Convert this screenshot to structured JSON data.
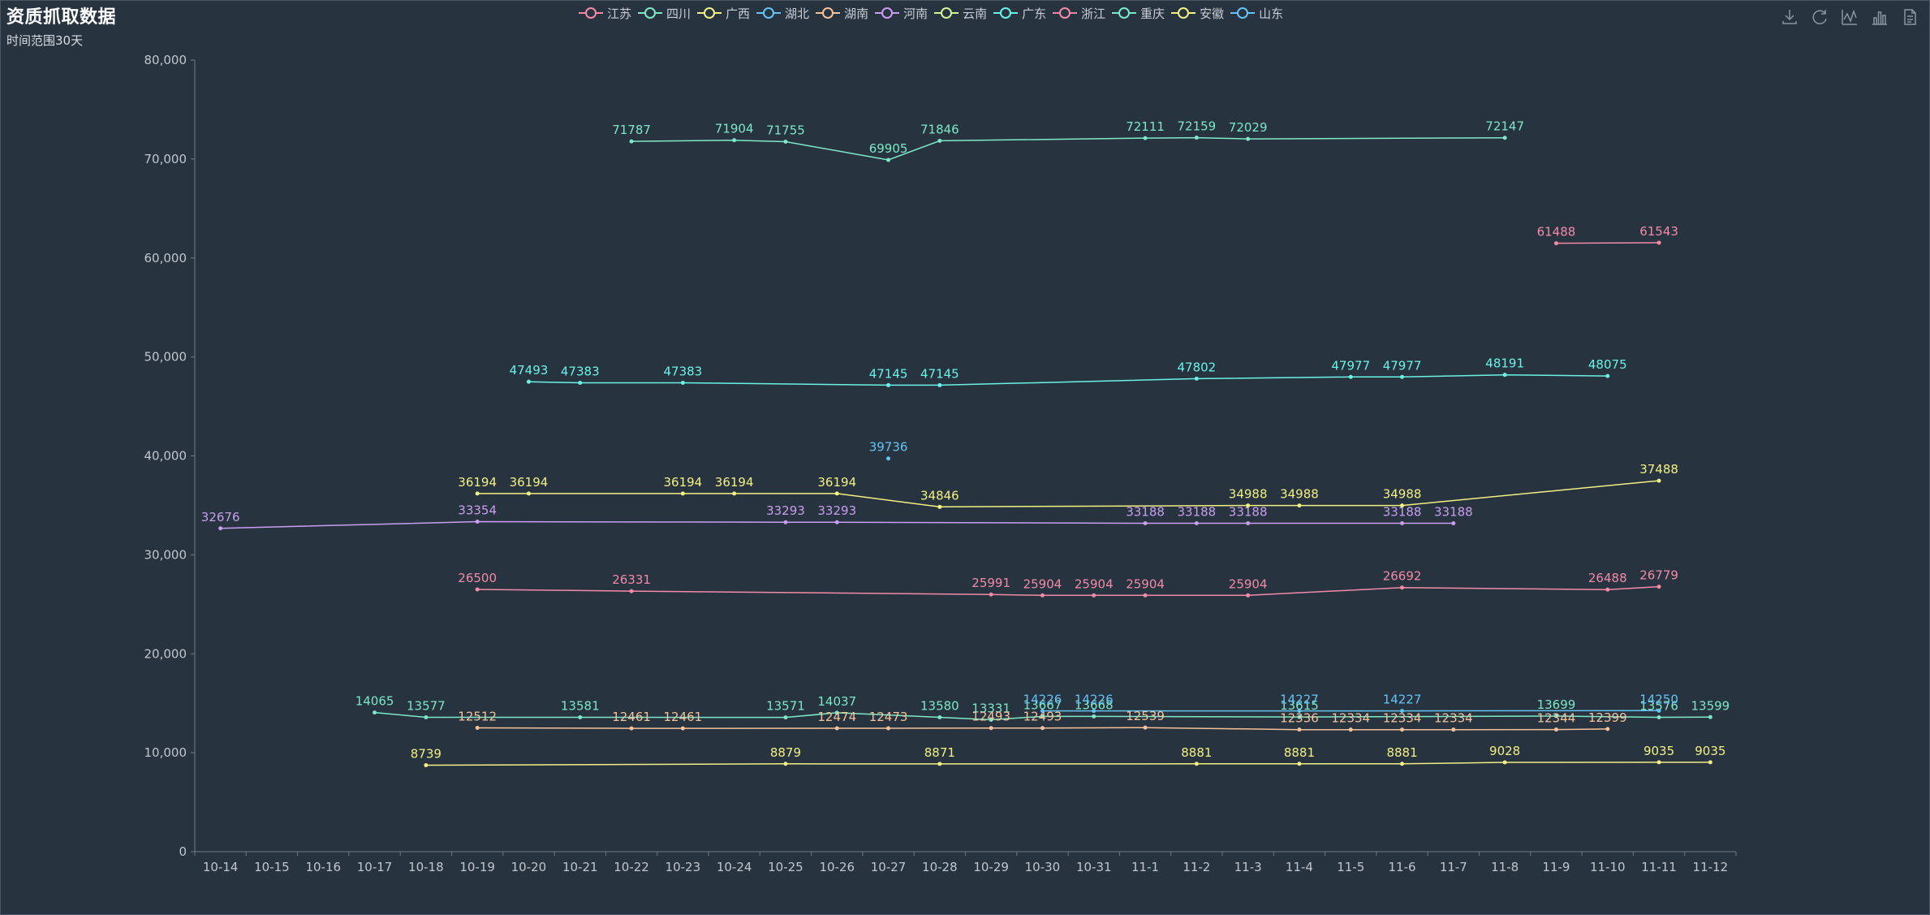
{
  "colors": {
    "series": [
      "#f38ba8",
      "#7de8c8",
      "#f3f083",
      "#65c3f5",
      "#f5c29b",
      "#c99ef0",
      "#d1f59b",
      "#6bf2e6",
      "#f38ba8",
      "#7de8c8",
      "#f3f083",
      "#65c3f5"
    ],
    "axis": "#6e7b8a",
    "tick_text": "#c0c6cd"
  },
  "toolbox": {
    "icons": [
      "download-icon",
      "refresh-icon",
      "line-chart-icon",
      "bar-chart-icon",
      "data-view-icon"
    ]
  },
  "chart_data": {
    "type": "line",
    "title": "资质抓取数据",
    "subtitle": "时间范围30天",
    "legend_position": "top-center",
    "xlabel": "",
    "ylabel": "",
    "ylim": [
      0,
      80000
    ],
    "yticks": [
      0,
      10000,
      20000,
      30000,
      40000,
      50000,
      60000,
      70000,
      80000
    ],
    "ytick_labels": [
      "0",
      "10,000",
      "20,000",
      "30,000",
      "40,000",
      "50,000",
      "60,000",
      "70,000",
      "80,000"
    ],
    "categories": [
      "10-14",
      "10-15",
      "10-16",
      "10-17",
      "10-18",
      "10-19",
      "10-20",
      "10-21",
      "10-22",
      "10-23",
      "10-24",
      "10-25",
      "10-26",
      "10-27",
      "10-28",
      "10-29",
      "10-30",
      "10-31",
      "11-1",
      "11-2",
      "11-3",
      "11-4",
      "11-5",
      "11-6",
      "11-7",
      "11-8",
      "11-9",
      "11-10",
      "11-11",
      "11-12"
    ],
    "series": [
      {
        "name": "江苏",
        "values": [
          null,
          null,
          null,
          null,
          null,
          26500,
          null,
          null,
          26331,
          null,
          null,
          null,
          null,
          null,
          null,
          25991,
          25904,
          25904,
          25904,
          null,
          25904,
          null,
          null,
          26692,
          null,
          null,
          null,
          26488,
          26779,
          null
        ]
      },
      {
        "name": "四川",
        "values": [
          null,
          null,
          null,
          14065,
          13577,
          null,
          null,
          13581,
          null,
          null,
          null,
          13571,
          14037,
          null,
          13580,
          13331,
          13667,
          13668,
          null,
          null,
          null,
          13615,
          null,
          null,
          null,
          null,
          13699,
          null,
          13576,
          13599
        ]
      },
      {
        "name": "广西",
        "values": [
          null,
          null,
          null,
          null,
          8739,
          null,
          null,
          null,
          null,
          null,
          null,
          8879,
          null,
          null,
          8871,
          null,
          null,
          null,
          null,
          8881,
          null,
          8881,
          null,
          8881,
          null,
          9028,
          null,
          null,
          9035,
          9035
        ]
      },
      {
        "name": "湖北",
        "values": [
          null,
          null,
          null,
          null,
          null,
          null,
          null,
          null,
          null,
          null,
          null,
          null,
          null,
          39736,
          null,
          null,
          null,
          null,
          null,
          null,
          null,
          null,
          null,
          null,
          null,
          null,
          null,
          null,
          null,
          null
        ]
      },
      {
        "name": "湖南",
        "values": [
          null,
          null,
          null,
          null,
          null,
          12512,
          null,
          null,
          12461,
          12461,
          null,
          null,
          12474,
          12473,
          null,
          12493,
          12493,
          null,
          12539,
          null,
          null,
          12336,
          12334,
          12334,
          12334,
          null,
          12344,
          12399,
          null,
          null
        ]
      },
      {
        "name": "河南",
        "values": [
          32676,
          null,
          null,
          null,
          null,
          33354,
          null,
          null,
          null,
          null,
          null,
          33293,
          33293,
          null,
          null,
          null,
          null,
          null,
          33188,
          33188,
          33188,
          null,
          null,
          33188,
          33188,
          null,
          null,
          null,
          null,
          null
        ]
      },
      {
        "name": "云南",
        "values": [
          null,
          null,
          null,
          null,
          null,
          null,
          null,
          null,
          null,
          null,
          null,
          null,
          null,
          null,
          null,
          null,
          null,
          null,
          null,
          null,
          null,
          null,
          null,
          null,
          null,
          null,
          null,
          null,
          null,
          null
        ]
      },
      {
        "name": "广东",
        "values": [
          null,
          null,
          null,
          null,
          null,
          null,
          47493,
          47383,
          null,
          47383,
          null,
          null,
          null,
          47145,
          47145,
          null,
          null,
          null,
          null,
          47802,
          null,
          null,
          47977,
          47977,
          null,
          48191,
          null,
          48075,
          null,
          null
        ]
      },
      {
        "name": "浙江",
        "values": [
          null,
          null,
          null,
          null,
          null,
          null,
          null,
          null,
          null,
          null,
          null,
          null,
          null,
          null,
          null,
          null,
          null,
          null,
          null,
          null,
          null,
          null,
          null,
          null,
          null,
          null,
          61488,
          null,
          61543,
          null
        ]
      },
      {
        "name": "重庆",
        "values": [
          null,
          null,
          null,
          null,
          null,
          null,
          null,
          null,
          71787,
          null,
          71904,
          71755,
          null,
          69905,
          71846,
          null,
          null,
          null,
          72111,
          72159,
          72029,
          null,
          null,
          null,
          null,
          72147,
          null,
          null,
          null,
          null
        ]
      },
      {
        "name": "安徽",
        "values": [
          null,
          null,
          null,
          null,
          null,
          36194,
          36194,
          null,
          null,
          36194,
          36194,
          null,
          36194,
          null,
          34846,
          null,
          null,
          null,
          null,
          null,
          34988,
          34988,
          null,
          34988,
          null,
          null,
          null,
          null,
          37488,
          null
        ]
      },
      {
        "name": "山东",
        "values": [
          null,
          null,
          null,
          null,
          null,
          null,
          null,
          null,
          null,
          null,
          null,
          null,
          null,
          null,
          null,
          null,
          14226,
          14226,
          null,
          null,
          null,
          14227,
          null,
          14227,
          null,
          null,
          null,
          null,
          14250,
          null
        ]
      }
    ]
  }
}
